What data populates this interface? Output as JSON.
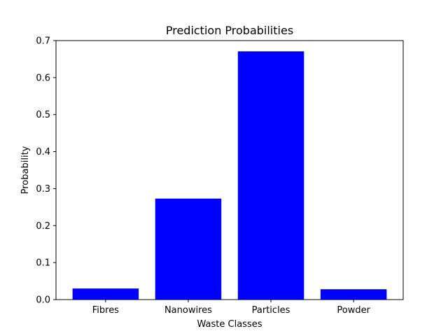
{
  "chart_data": {
    "type": "bar",
    "title": "Prediction Probabilities",
    "xlabel": "Waste Classes",
    "ylabel": "Probability",
    "categories": [
      "Fibres",
      "Nanowires",
      "Particles",
      "Powder"
    ],
    "values": [
      0.03,
      0.273,
      0.671,
      0.028
    ],
    "ylim": [
      0,
      0.7
    ],
    "yticks": [
      "0.0",
      "0.1",
      "0.2",
      "0.3",
      "0.4",
      "0.5",
      "0.6",
      "0.7"
    ],
    "bar_color": "#0000ff",
    "grid": false,
    "legend": "none"
  }
}
